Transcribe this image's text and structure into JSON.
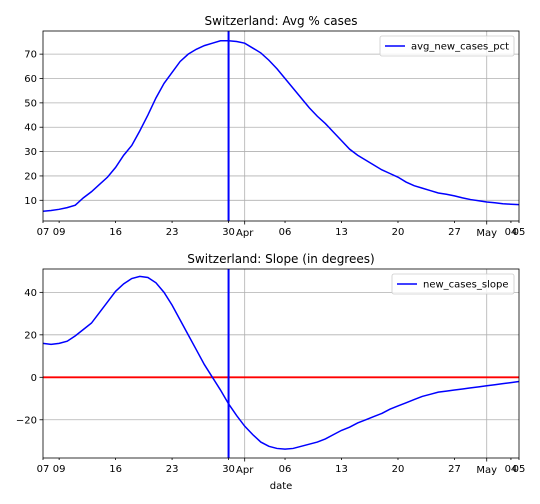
{
  "chart_data": [
    {
      "type": "line",
      "title": "Switzerland: Avg % cases",
      "xlabel": "",
      "ylabel": "",
      "ylim": [
        1.5,
        79.5
      ],
      "yticks": [
        10,
        20,
        30,
        40,
        50,
        60,
        70
      ],
      "xlim": [
        "2020-03-07",
        "2020-05-05"
      ],
      "xticks": [
        {
          "date": "2020-03-07",
          "label": "07"
        },
        {
          "date": "2020-03-09",
          "label": "09"
        },
        {
          "date": "2020-03-16",
          "label": "16"
        },
        {
          "date": "2020-03-23",
          "label": "23"
        },
        {
          "date": "2020-03-30",
          "label": "30"
        },
        {
          "date": "2020-04-01",
          "label": "Apr"
        },
        {
          "date": "2020-04-06",
          "label": "06"
        },
        {
          "date": "2020-04-13",
          "label": "13"
        },
        {
          "date": "2020-04-20",
          "label": "20"
        },
        {
          "date": "2020-04-27",
          "label": "27"
        },
        {
          "date": "2020-05-01",
          "label": "May"
        },
        {
          "date": "2020-05-04",
          "label": "04"
        },
        {
          "date": "2020-05-05",
          "label": "05"
        }
      ],
      "grid": true,
      "legend_position": "upper right",
      "vline": {
        "date": "2020-03-30",
        "color": "#0000ff"
      },
      "series": [
        {
          "name": "avg_new_cases_pct",
          "color": "#0000ff",
          "x": [
            "2020-03-07",
            "2020-03-08",
            "2020-03-09",
            "2020-03-10",
            "2020-03-11",
            "2020-03-12",
            "2020-03-13",
            "2020-03-14",
            "2020-03-15",
            "2020-03-16",
            "2020-03-17",
            "2020-03-18",
            "2020-03-19",
            "2020-03-20",
            "2020-03-21",
            "2020-03-22",
            "2020-03-23",
            "2020-03-24",
            "2020-03-25",
            "2020-03-26",
            "2020-03-27",
            "2020-03-28",
            "2020-03-29",
            "2020-03-30",
            "2020-03-31",
            "2020-04-01",
            "2020-04-02",
            "2020-04-03",
            "2020-04-04",
            "2020-04-05",
            "2020-04-06",
            "2020-04-07",
            "2020-04-08",
            "2020-04-09",
            "2020-04-10",
            "2020-04-11",
            "2020-04-12",
            "2020-04-13",
            "2020-04-14",
            "2020-04-15",
            "2020-04-16",
            "2020-04-17",
            "2020-04-18",
            "2020-04-19",
            "2020-04-20",
            "2020-04-21",
            "2020-04-22",
            "2020-04-23",
            "2020-04-24",
            "2020-04-25",
            "2020-04-26",
            "2020-04-27",
            "2020-04-28",
            "2020-04-29",
            "2020-04-30",
            "2020-05-01",
            "2020-05-02",
            "2020-05-03",
            "2020-05-04",
            "2020-05-05"
          ],
          "values": [
            5.5,
            5.8,
            6.3,
            7.0,
            8.0,
            11.0,
            13.5,
            16.5,
            19.5,
            23.5,
            28.5,
            32.5,
            38.5,
            45.0,
            52.0,
            58.0,
            62.5,
            67.0,
            70.0,
            72.0,
            73.5,
            74.5,
            75.5,
            75.5,
            75.2,
            74.5,
            72.5,
            70.5,
            67.5,
            64.0,
            60.0,
            56.0,
            52.0,
            48.0,
            44.5,
            41.5,
            38.0,
            34.5,
            31.0,
            28.5,
            26.5,
            24.5,
            22.5,
            21.0,
            19.5,
            17.5,
            16.0,
            15.0,
            14.0,
            13.0,
            12.5,
            11.8,
            11.0,
            10.3,
            9.8,
            9.3,
            9.0,
            8.6,
            8.4,
            8.2
          ]
        }
      ]
    },
    {
      "type": "line",
      "title": "Switzerland: Slope (in degrees)",
      "xlabel": "date",
      "ylabel": "",
      "ylim": [
        -38,
        51
      ],
      "yticks": [
        -20,
        0,
        20,
        40
      ],
      "ytick_labels": [
        "−20",
        "0",
        "20",
        "40"
      ],
      "xlim": [
        "2020-03-07",
        "2020-05-05"
      ],
      "xticks": [
        {
          "date": "2020-03-07",
          "label": "07"
        },
        {
          "date": "2020-03-09",
          "label": "09"
        },
        {
          "date": "2020-03-16",
          "label": "16"
        },
        {
          "date": "2020-03-23",
          "label": "23"
        },
        {
          "date": "2020-03-30",
          "label": "30"
        },
        {
          "date": "2020-04-01",
          "label": "Apr"
        },
        {
          "date": "2020-04-06",
          "label": "06"
        },
        {
          "date": "2020-04-13",
          "label": "13"
        },
        {
          "date": "2020-04-20",
          "label": "20"
        },
        {
          "date": "2020-04-27",
          "label": "27"
        },
        {
          "date": "2020-05-01",
          "label": "May"
        },
        {
          "date": "2020-05-04",
          "label": "04"
        },
        {
          "date": "2020-05-05",
          "label": "05"
        }
      ],
      "grid": true,
      "legend_position": "upper right",
      "vline": {
        "date": "2020-03-30",
        "color": "#0000ff"
      },
      "hline": {
        "value": 0,
        "color": "#ff0000"
      },
      "series": [
        {
          "name": "new_cases_slope",
          "color": "#0000ff",
          "x": [
            "2020-03-07",
            "2020-03-08",
            "2020-03-09",
            "2020-03-10",
            "2020-03-11",
            "2020-03-12",
            "2020-03-13",
            "2020-03-14",
            "2020-03-15",
            "2020-03-16",
            "2020-03-17",
            "2020-03-18",
            "2020-03-19",
            "2020-03-20",
            "2020-03-21",
            "2020-03-22",
            "2020-03-23",
            "2020-03-24",
            "2020-03-25",
            "2020-03-26",
            "2020-03-27",
            "2020-03-28",
            "2020-03-29",
            "2020-03-30",
            "2020-03-31",
            "2020-04-01",
            "2020-04-02",
            "2020-04-03",
            "2020-04-04",
            "2020-04-05",
            "2020-04-06",
            "2020-04-07",
            "2020-04-08",
            "2020-04-09",
            "2020-04-10",
            "2020-04-11",
            "2020-04-12",
            "2020-04-13",
            "2020-04-14",
            "2020-04-15",
            "2020-04-16",
            "2020-04-17",
            "2020-04-18",
            "2020-04-19",
            "2020-04-20",
            "2020-04-21",
            "2020-04-22",
            "2020-04-23",
            "2020-04-24",
            "2020-04-25",
            "2020-04-26",
            "2020-04-27",
            "2020-04-28",
            "2020-04-29",
            "2020-04-30",
            "2020-05-01",
            "2020-05-02",
            "2020-05-03",
            "2020-05-04",
            "2020-05-05"
          ],
          "values": [
            16,
            15.5,
            16,
            17,
            19.5,
            22.5,
            25.5,
            30.5,
            35.5,
            40.5,
            44,
            46.5,
            47.5,
            47,
            44.5,
            40,
            34,
            27,
            20,
            13,
            6,
            0,
            -6,
            -12.5,
            -18,
            -23,
            -27,
            -30.5,
            -32.5,
            -33.5,
            -33.8,
            -33.5,
            -32.5,
            -31.5,
            -30.5,
            -29,
            -27,
            -25,
            -23.5,
            -21.5,
            -20,
            -18.5,
            -17,
            -15,
            -13.5,
            -12,
            -10.5,
            -9,
            -8,
            -7,
            -6.5,
            -6,
            -5.5,
            -5,
            -4.5,
            -4,
            -3.5,
            -3,
            -2.5,
            -2
          ]
        }
      ]
    }
  ]
}
